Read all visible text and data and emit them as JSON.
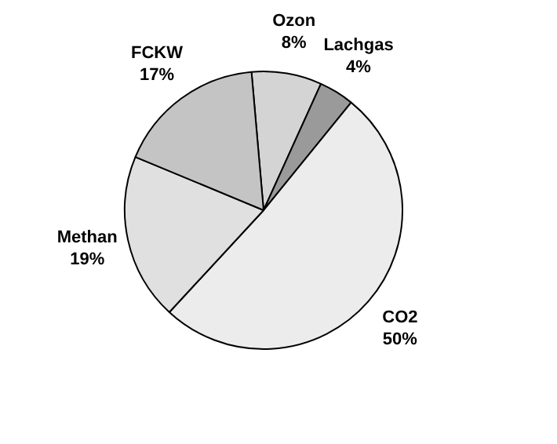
{
  "chart_data": {
    "type": "pie",
    "categories": [
      "Ozon",
      "Lachgas",
      "CO2",
      "Methan",
      "FCKW"
    ],
    "values": [
      8,
      4,
      50,
      19,
      17
    ],
    "colors": [
      "#d4d4d4",
      "#9a9a9a",
      "#ececec",
      "#e0e0e0",
      "#c4c4c4"
    ],
    "value_labels": [
      "8%",
      "4%",
      "50%",
      "19%",
      "17%"
    ]
  }
}
